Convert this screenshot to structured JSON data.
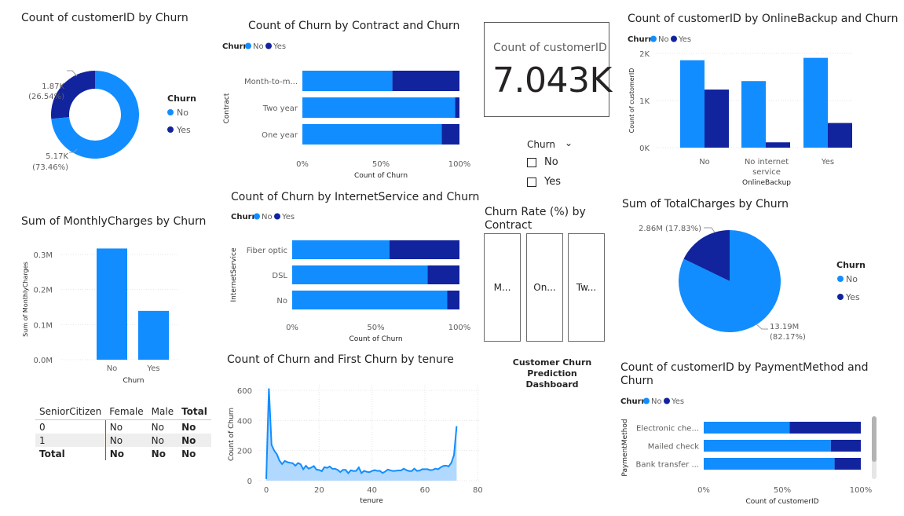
{
  "colors": {
    "no": "#118DFF",
    "yes": "#12239E",
    "axis": "#605E5C",
    "grid": "#E5E5E5",
    "area": "#A9D4FF"
  },
  "legend": {
    "title": "Churn",
    "no": "No",
    "yes": "Yes"
  },
  "visuals": {
    "donut": {
      "title": "Count of customerID by Churn",
      "label_yes_value": "1.87K",
      "label_yes_pct": "(26.54%)",
      "label_no_value": "5.17K",
      "label_no_pct": "(73.46%)"
    },
    "contract_bar": {
      "title": "Count of Churn by Contract and Churn",
      "ylabel": "Contract",
      "xlabel": "Count of Churn"
    },
    "kpi": {
      "label": "Count of customerID",
      "value": "7.043K"
    },
    "slicer": {
      "title": "Churn",
      "options": [
        "No",
        "Yes"
      ]
    },
    "online_backup": {
      "title": "Count of customerID by OnlineBackup and Churn",
      "ylabel": "Count of customerID",
      "xlabel": "OnlineBackup"
    },
    "internet_bar": {
      "title": "Count of Churn by InternetService and Churn",
      "ylabel": "InternetService",
      "xlabel": "Count of Churn"
    },
    "monthly": {
      "title": "Sum of MonthlyCharges by Churn",
      "ylabel": "Sum of MonthlyCharges",
      "xlabel": "Churn"
    },
    "churn_rate": {
      "title_line1": "Churn Rate (%) by",
      "title_line2": "Contract",
      "cards": [
        "M...",
        "On...",
        "Tw..."
      ]
    },
    "total_charges": {
      "title": "Sum of TotalCharges by Churn",
      "label_yes": "2.86M (17.83%)",
      "label_no_value": "13.19M",
      "label_no_pct": "(82.17%)"
    },
    "tenure": {
      "title": "Count of Churn and First Churn by tenure",
      "ylabel": "Count of Churn",
      "xlabel": "tenure"
    },
    "dashboard_title": {
      "line1": "Customer Churn",
      "line2": "Prediction Dashboard"
    },
    "payment": {
      "title_line1": "Count of customerID by PaymentMethod and",
      "title_line2": "Churn",
      "ylabel": "PaymentMethod",
      "xlabel": "Count of customerID"
    },
    "matrix": {
      "headers": [
        "SeniorCitizen",
        "Female",
        "Male",
        "Total"
      ],
      "rows": [
        {
          "label": "0",
          "female": "No",
          "male": "No",
          "total": "No"
        },
        {
          "label": "1",
          "female": "No",
          "male": "No",
          "total": "No"
        }
      ],
      "total_row": {
        "label": "Total",
        "female": "No",
        "male": "No",
        "total": "No"
      }
    }
  },
  "chart_data": [
    {
      "id": "donut",
      "type": "pie",
      "title": "Count of customerID by Churn",
      "categories": [
        "No",
        "Yes"
      ],
      "values": [
        5174,
        1869
      ],
      "legend": "right",
      "donut": true
    },
    {
      "id": "contract",
      "type": "bar",
      "orientation": "horizontal",
      "stacked_percent": true,
      "title": "Count of Churn by Contract and Churn",
      "categories": [
        "Month-to-m...",
        "Two year",
        "One year"
      ],
      "series": [
        {
          "name": "No",
          "values": [
            57.3,
            97.2,
            88.7
          ]
        },
        {
          "name": "Yes",
          "values": [
            42.7,
            2.8,
            11.3
          ]
        }
      ],
      "xlabel": "Count of Churn",
      "ylabel": "Contract",
      "xlim": [
        0,
        100
      ],
      "xticks": [
        "0%",
        "50%",
        "100%"
      ],
      "legend": "top-left"
    },
    {
      "id": "online_backup",
      "type": "bar",
      "title": "Count of customerID by OnlineBackup and Churn",
      "categories": [
        "No",
        "No internet service",
        "Yes"
      ],
      "series": [
        {
          "name": "No",
          "values": [
            1855,
            1413,
            1906
          ]
        },
        {
          "name": "Yes",
          "values": [
            1233,
            113,
            523
          ]
        }
      ],
      "xlabel": "OnlineBackup",
      "ylabel": "Count of customerID",
      "ylim": [
        0,
        2000
      ],
      "yticks": [
        "0K",
        "1K",
        "2K"
      ],
      "grid": true,
      "legend": "top-left"
    },
    {
      "id": "internet",
      "type": "bar",
      "orientation": "horizontal",
      "stacked_percent": true,
      "title": "Count of Churn by InternetService and Churn",
      "categories": [
        "Fiber optic",
        "DSL",
        "No"
      ],
      "series": [
        {
          "name": "No",
          "values": [
            58.1,
            81.0,
            92.6
          ]
        },
        {
          "name": "Yes",
          "values": [
            41.9,
            19.0,
            7.4
          ]
        }
      ],
      "xlabel": "Count of Churn",
      "ylabel": "InternetService",
      "xlim": [
        0,
        100
      ],
      "xticks": [
        "0%",
        "50%",
        "100%"
      ],
      "legend": "top-left"
    },
    {
      "id": "monthly",
      "type": "bar",
      "title": "Sum of MonthlyCharges by Churn",
      "categories": [
        "No",
        "Yes"
      ],
      "values": [
        316985,
        139131
      ],
      "xlabel": "Churn",
      "ylabel": "Sum of MonthlyCharges",
      "ylim": [
        0,
        300000
      ],
      "yticks": [
        "0.0M",
        "0.1M",
        "0.2M",
        "0.3M"
      ],
      "grid": true
    },
    {
      "id": "total_charges",
      "type": "pie",
      "title": "Sum of TotalCharges by Churn",
      "categories": [
        "No",
        "Yes"
      ],
      "values": [
        13.19,
        2.86
      ],
      "legend": "right"
    },
    {
      "id": "tenure",
      "type": "area",
      "title": "Count of Churn and First Churn by tenure",
      "x": [
        0,
        1,
        2,
        3,
        4,
        5,
        6,
        7,
        8,
        9,
        10,
        11,
        12,
        13,
        14,
        15,
        16,
        17,
        18,
        19,
        20,
        21,
        22,
        23,
        24,
        25,
        26,
        27,
        28,
        29,
        30,
        31,
        32,
        33,
        34,
        35,
        36,
        37,
        38,
        39,
        40,
        41,
        42,
        43,
        44,
        45,
        46,
        47,
        48,
        49,
        50,
        51,
        52,
        53,
        54,
        55,
        56,
        57,
        58,
        59,
        60,
        61,
        62,
        63,
        64,
        65,
        66,
        67,
        68,
        69,
        70,
        71,
        72
      ],
      "series": [
        {
          "name": "Count of Churn",
          "values": [
            11,
            613,
            238,
            200,
            176,
            133,
            110,
            131,
            123,
            119,
            116,
            99,
            117,
            109,
            76,
            99,
            80,
            87,
            97,
            73,
            71,
            63,
            90,
            85,
            94,
            79,
            79,
            72,
            57,
            72,
            72,
            50,
            69,
            64,
            65,
            88,
            50,
            65,
            59,
            56,
            64,
            70,
            65,
            65,
            51,
            61,
            74,
            68,
            64,
            66,
            68,
            68,
            80,
            70,
            64,
            64,
            80,
            65,
            67,
            76,
            76,
            76,
            70,
            72,
            80,
            76,
            89,
            98,
            100,
            95,
            119,
            170,
            362
          ]
        }
      ],
      "xlabel": "tenure",
      "ylabel": "Count of Churn",
      "xlim": [
        0,
        80
      ],
      "ylim": [
        0,
        600
      ],
      "xticks": [
        "0",
        "20",
        "40",
        "60",
        "80"
      ],
      "yticks": [
        "0",
        "200",
        "400",
        "600"
      ],
      "grid": true
    },
    {
      "id": "payment",
      "type": "bar",
      "orientation": "horizontal",
      "stacked_percent": true,
      "title": "Count of customerID by PaymentMethod and Churn",
      "categories": [
        "Electronic che...",
        "Mailed check",
        "Bank transfer ..."
      ],
      "series": [
        {
          "name": "No",
          "values": [
            54.7,
            80.9,
            83.3
          ]
        },
        {
          "name": "Yes",
          "values": [
            45.3,
            19.1,
            16.7
          ]
        }
      ],
      "xlabel": "Count of customerID",
      "ylabel": "PaymentMethod",
      "xlim": [
        0,
        100
      ],
      "xticks": [
        "0%",
        "50%",
        "100%"
      ],
      "legend": "top-left"
    }
  ]
}
